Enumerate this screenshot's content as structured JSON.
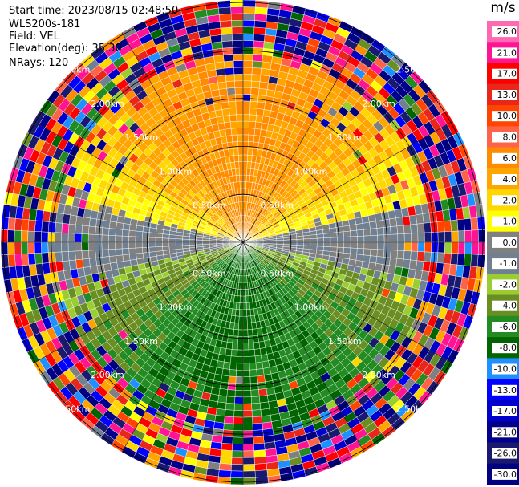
{
  "header": {
    "start_time": "Start time: 2023/08/15 02:48:50",
    "instrument": "WLS200s-181",
    "field": "Field: VEL",
    "elevation": "Elevation(deg): 35.30",
    "nrays": "NRays: 120"
  },
  "colorbar": {
    "unit": "m/s",
    "ticks": [
      "26.0",
      "21.0",
      "17.0",
      "13.0",
      "10.0",
      "8.0",
      "6.0",
      "4.0",
      "2.0",
      "1.0",
      "0.0",
      "-1.0",
      "-2.0",
      "-4.0",
      "-6.0",
      "-8.0",
      "-10.0",
      "-13.0",
      "-17.0",
      "-21.0",
      "-26.0",
      "-30.0"
    ],
    "colors": [
      "#ff69b4",
      "#ff1493",
      "#ff0000",
      "#e8261a",
      "#ff4500",
      "#ff6347",
      "#ff8c00",
      "#ffa500",
      "#ffd700",
      "#ffff00",
      "#808080",
      "#708090",
      "#9acd32",
      "#6b8e23",
      "#228b22",
      "#006400",
      "#1e90ff",
      "#0000ff",
      "#0000cd",
      "#00008b",
      "#191970",
      "#000080"
    ]
  },
  "chart_data": {
    "type": "heatmap",
    "subtype": "PPI radial velocity",
    "field": "VEL",
    "units": "m/s",
    "n_rays": 120,
    "range_rings_km": [
      0.5,
      1.0,
      1.5,
      2.0,
      2.5
    ],
    "range_labels": [
      "0.50km",
      "1.00km",
      "1.50km",
      "2.00km",
      "2.50km"
    ],
    "range_labels_shown": [
      "2.00km",
      "1.00km",
      "1.00km",
      "1.00km",
      "2.00km",
      "2.00km",
      "2.00km",
      "1.00km",
      "1.00km",
      "2.00km",
      "1.00km",
      "1.00km",
      "2.00km",
      "2.00km",
      "2.00km"
    ],
    "scale_min": -30.0,
    "scale_max": 26.0,
    "pattern": {
      "north_sector": "positive velocities (1 to 8 m/s)",
      "south_sector": "negative velocities (-1 to -8 m/s)",
      "east_west_axis": "near zero (gray)",
      "outer_ranges": "noise"
    }
  }
}
